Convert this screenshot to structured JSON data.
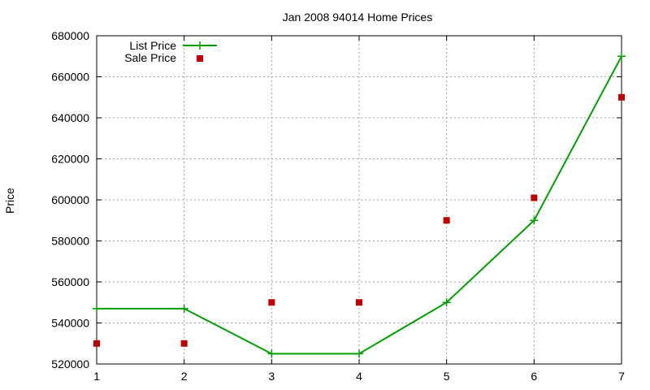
{
  "chart_data": {
    "type": "line",
    "title": "Jan 2008 94014 Home Prices",
    "xlabel": "",
    "ylabel": "Price",
    "xlim": [
      1,
      7
    ],
    "ylim": [
      520000,
      680000
    ],
    "x_ticks": [
      "1",
      "2",
      "3",
      "4",
      "5",
      "6",
      "7"
    ],
    "y_ticks": [
      "520000",
      "540000",
      "560000",
      "580000",
      "600000",
      "620000",
      "640000",
      "660000",
      "680000"
    ],
    "grid": true,
    "legend_position": "top-left",
    "series": [
      {
        "name": "List Price",
        "style": "line with plus markers",
        "color": "#00a000",
        "x": [
          1,
          2,
          3,
          4,
          5,
          6,
          7
        ],
        "values": [
          547000,
          547000,
          525000,
          525000,
          550000,
          590000,
          670000
        ]
      },
      {
        "name": "Sale Price",
        "style": "square markers",
        "color": "#c00000",
        "x": [
          1,
          2,
          3,
          4,
          5,
          6,
          7
        ],
        "values": [
          530000,
          530000,
          550000,
          550000,
          590000,
          601000,
          650000
        ]
      }
    ]
  }
}
